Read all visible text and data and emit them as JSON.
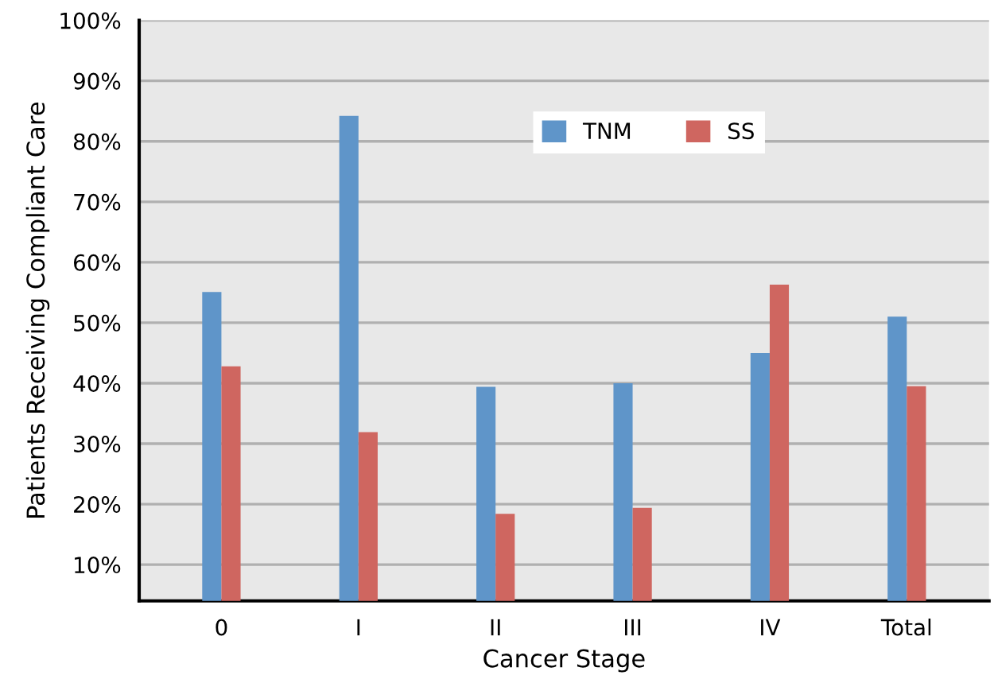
{
  "chart_data": {
    "type": "bar",
    "xlabel": "Cancer Stage",
    "ylabel": "Patients Receiving Compliant Care",
    "categories": [
      "0",
      "I",
      "II",
      "III",
      "IV",
      "Total"
    ],
    "series": [
      {
        "name": "TNM",
        "color": "#5f95c9",
        "values": [
          55.1,
          84.2,
          39.4,
          40.0,
          45.0,
          51.0
        ]
      },
      {
        "name": "SS",
        "color": "#cf6660",
        "values": [
          42.8,
          31.9,
          18.4,
          19.4,
          56.3,
          39.5
        ]
      }
    ],
    "ylim": [
      4,
      100
    ],
    "yticks": [
      {
        "value": 10,
        "label": "10%"
      },
      {
        "value": 20,
        "label": "20%"
      },
      {
        "value": 30,
        "label": "30%"
      },
      {
        "value": 40,
        "label": "40%"
      },
      {
        "value": 50,
        "label": "50%"
      },
      {
        "value": 60,
        "label": "60%"
      },
      {
        "value": 70,
        "label": "70%"
      },
      {
        "value": 80,
        "label": "80%"
      },
      {
        "value": 90,
        "label": "90%"
      },
      {
        "value": 100,
        "label": "100%"
      }
    ],
    "grid": "y",
    "legend": "top"
  }
}
